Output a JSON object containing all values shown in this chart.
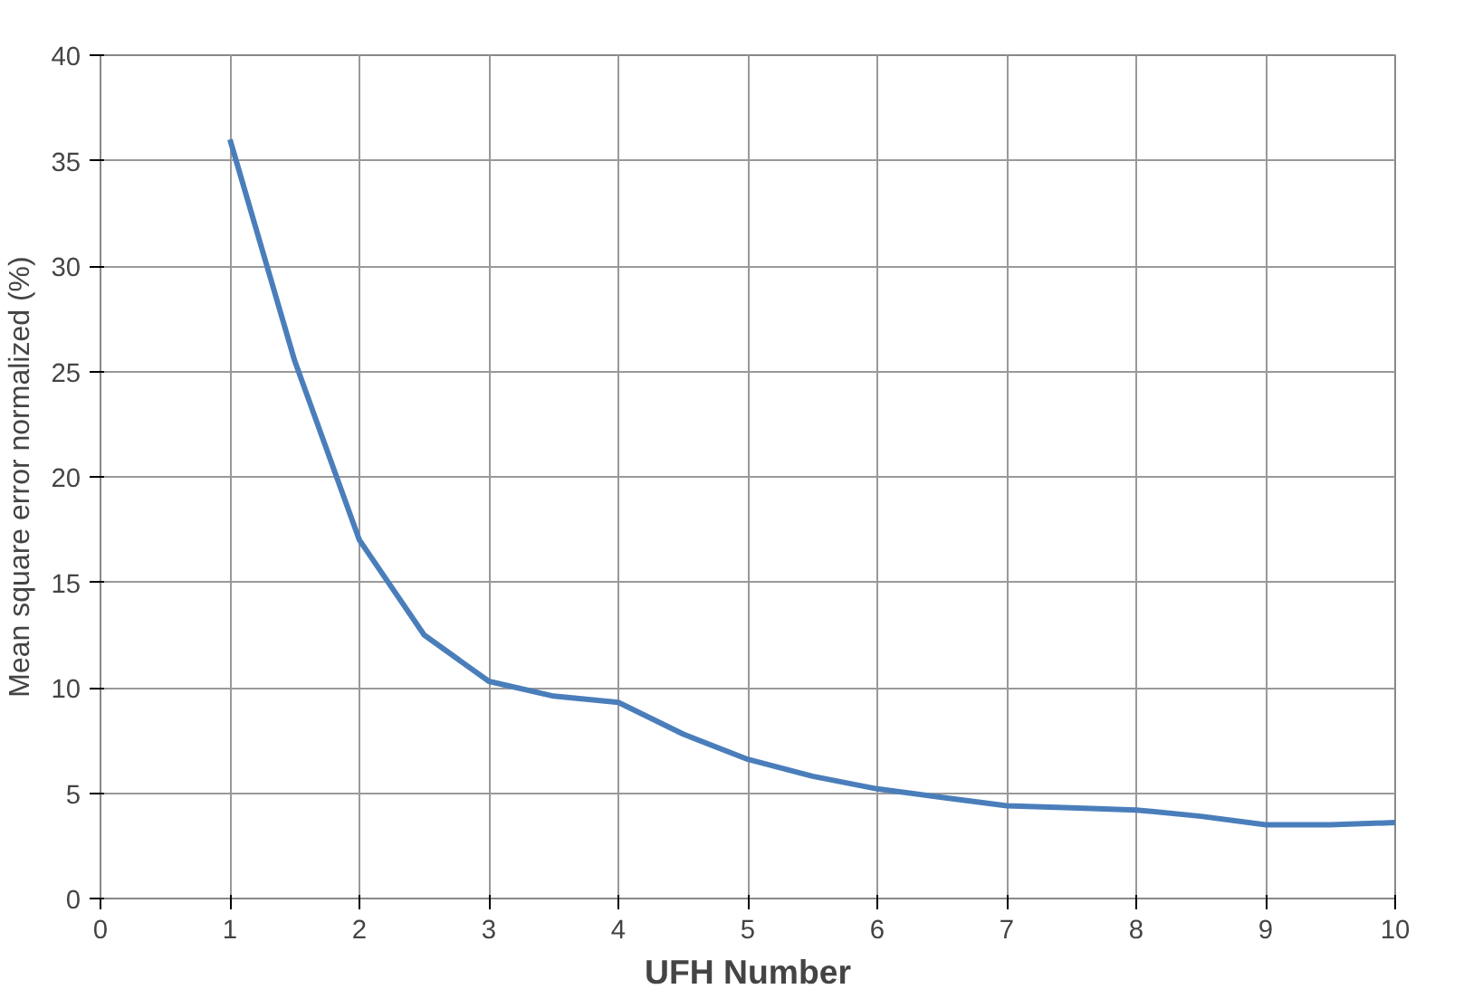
{
  "chart_data": {
    "type": "line",
    "xlabel": "UFH Number",
    "ylabel": "Mean square error normalized (%)",
    "x": [
      1,
      1.5,
      2,
      2.5,
      3,
      3.5,
      4,
      4.5,
      5,
      5.5,
      6,
      6.5,
      7,
      7.5,
      8,
      8.5,
      9,
      9.5,
      10
    ],
    "series": [
      {
        "color": "#4a7ebb",
        "values": [
          36,
          25.5,
          17,
          12.5,
          10.3,
          9.6,
          9.3,
          7.8,
          6.6,
          5.8,
          5.2,
          4.8,
          4.4,
          4.3,
          4.2,
          3.9,
          3.5,
          3.5,
          3.6
        ]
      }
    ],
    "xlim": [
      0,
      10
    ],
    "xticks": [
      0,
      1,
      2,
      3,
      4,
      5,
      6,
      7,
      8,
      9,
      10
    ],
    "ylim": [
      0,
      40
    ],
    "yticks": [
      0,
      5,
      10,
      15,
      20,
      25,
      30,
      35,
      40
    ],
    "grid": true,
    "marker": "none",
    "line_style": "solid"
  }
}
